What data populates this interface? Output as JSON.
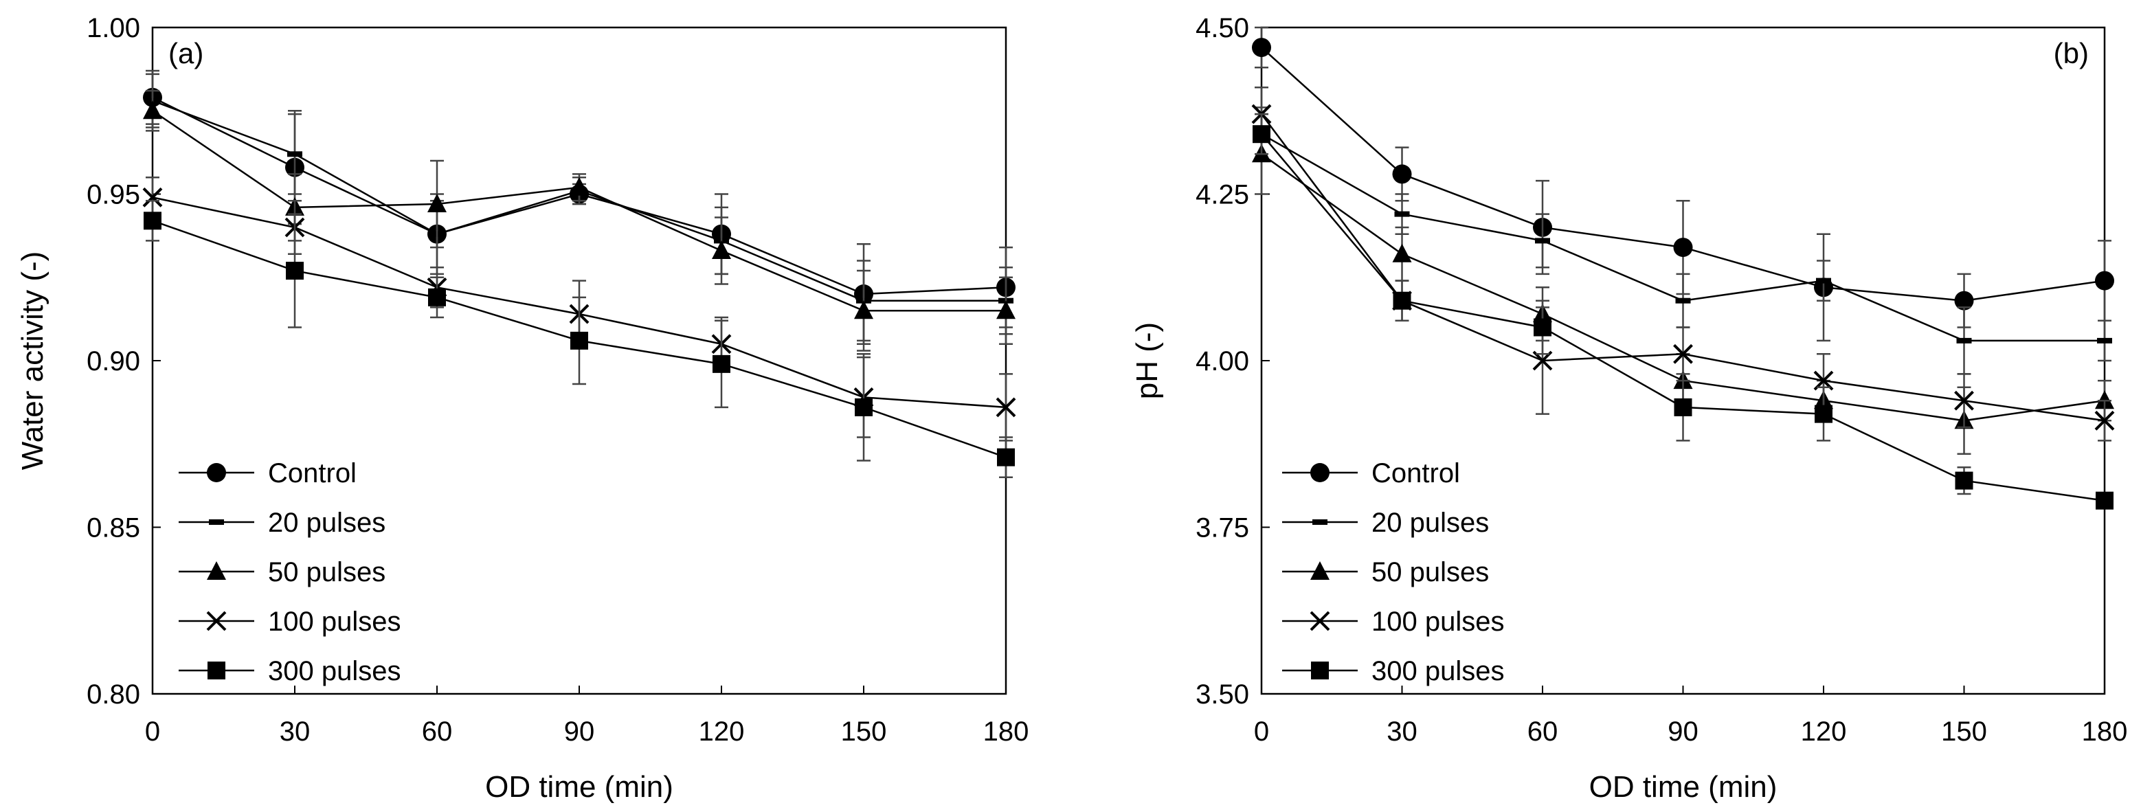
{
  "chart_data": [
    {
      "type": "line",
      "panel_label": "(a)",
      "xlabel": "OD time (min)",
      "ylabel": "Water activity (-)",
      "x": [
        0,
        30,
        60,
        90,
        120,
        150,
        180
      ],
      "x_tick_labels": [
        "0",
        "30",
        "60",
        "90",
        "120",
        "150",
        "180"
      ],
      "ylim": [
        0.8,
        1.0
      ],
      "y_ticks": [
        0.8,
        0.85,
        0.9,
        0.95,
        1.0
      ],
      "y_tick_labels": [
        "0.80",
        "0.85",
        "0.90",
        "0.95",
        "1.00"
      ],
      "legend_position": "bottom-left",
      "series": [
        {
          "name": "Control",
          "marker": "circle",
          "values": [
            0.979,
            0.958,
            0.938,
            0.95,
            0.938,
            0.92,
            0.922
          ],
          "errors": [
            0.008,
            0.017,
            0.012,
            0.003,
            0.012,
            0.015,
            0.012
          ]
        },
        {
          "name": "20 pulses",
          "marker": "dash",
          "values": [
            0.978,
            0.962,
            0.938,
            0.951,
            0.936,
            0.918,
            0.918
          ],
          "errors": [
            0.008,
            0.012,
            0.01,
            0.004,
            0.01,
            0.012,
            0.01
          ]
        },
        {
          "name": "50 pulses",
          "marker": "triangle",
          "values": [
            0.975,
            0.946,
            0.947,
            0.952,
            0.933,
            0.915,
            0.915
          ],
          "errors": [
            0.006,
            0.01,
            0.013,
            0.004,
            0.01,
            0.012,
            0.01
          ]
        },
        {
          "name": "100 pulses",
          "marker": "x",
          "values": [
            0.949,
            0.94,
            0.922,
            0.914,
            0.905,
            0.889,
            0.886
          ],
          "errors": [
            0.006,
            0.008,
            0.006,
            0.01,
            0.008,
            0.012,
            0.01
          ]
        },
        {
          "name": "300 pulses",
          "marker": "square",
          "values": [
            0.942,
            0.927,
            0.919,
            0.906,
            0.899,
            0.886,
            0.871
          ],
          "errors": [
            0.006,
            0.017,
            0.006,
            0.013,
            0.013,
            0.016,
            0.006
          ]
        }
      ]
    },
    {
      "type": "line",
      "panel_label": "(b)",
      "xlabel": "OD time (min)",
      "ylabel": "pH (-)",
      "x": [
        0,
        30,
        60,
        90,
        120,
        150,
        180
      ],
      "x_tick_labels": [
        "0",
        "30",
        "60",
        "90",
        "120",
        "150",
        "180"
      ],
      "ylim": [
        3.5,
        4.5
      ],
      "y_ticks": [
        3.5,
        3.75,
        4.0,
        4.25,
        4.5
      ],
      "y_tick_labels": [
        "3.50",
        "3.75",
        "4.00",
        "4.25",
        "4.50"
      ],
      "legend_position": "bottom-left",
      "series": [
        {
          "name": "Control",
          "marker": "circle",
          "values": [
            4.47,
            4.28,
            4.2,
            4.17,
            4.11,
            4.09,
            4.12
          ],
          "errors": [
            0.03,
            0.04,
            0.07,
            0.07,
            0.08,
            0.04,
            0.06
          ]
        },
        {
          "name": "20 pulses",
          "marker": "dash",
          "values": [
            4.34,
            4.22,
            4.18,
            4.09,
            4.12,
            4.03,
            4.03
          ],
          "errors": [
            0.04,
            0.03,
            0.04,
            0.04,
            0.03,
            0.05,
            0.03
          ]
        },
        {
          "name": "50 pulses",
          "marker": "triangle",
          "values": [
            4.31,
            4.16,
            4.07,
            3.97,
            3.94,
            3.91,
            3.94
          ],
          "errors": [
            0.06,
            0.04,
            0.04,
            0.04,
            0.03,
            0.05,
            0.03
          ]
        },
        {
          "name": "100 pulses",
          "marker": "x",
          "values": [
            4.37,
            4.09,
            4.0,
            4.01,
            3.97,
            3.94,
            3.91
          ],
          "errors": [
            0.04,
            0.03,
            0.08,
            0.04,
            0.04,
            0.04,
            0.03
          ]
        },
        {
          "name": "300 pulses",
          "marker": "square",
          "values": [
            4.34,
            4.09,
            4.05,
            3.93,
            3.92,
            3.82,
            3.79
          ],
          "errors": [
            0.03,
            0.03,
            0.04,
            0.05,
            0.04,
            0.02,
            0.01
          ]
        }
      ]
    }
  ]
}
